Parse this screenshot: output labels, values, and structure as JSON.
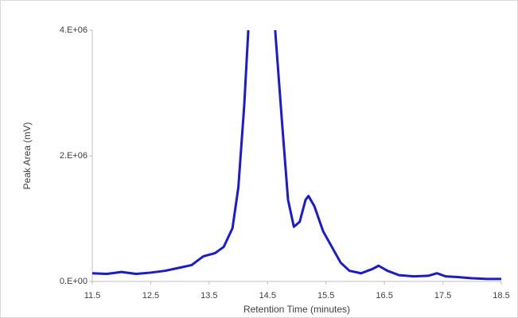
{
  "chart_data": {
    "type": "line",
    "x_label": "Retention Time (minutes)",
    "y_label": "Peak Area (mV)",
    "x": [
      11.5,
      11.75,
      12.0,
      12.25,
      12.5,
      12.75,
      13.0,
      13.2,
      13.4,
      13.6,
      13.75,
      13.9,
      14.0,
      14.1,
      14.17,
      14.4,
      14.63,
      14.75,
      14.85,
      14.95,
      15.05,
      15.15,
      15.2,
      15.3,
      15.45,
      15.6,
      15.75,
      15.9,
      16.1,
      16.3,
      16.4,
      16.55,
      16.75,
      17.0,
      17.25,
      17.4,
      17.55,
      17.75,
      18.0,
      18.25,
      18.5
    ],
    "series": [
      {
        "color": "#1a1ad6",
        "values": [
          130000,
          120000,
          150000,
          120000,
          140000,
          170000,
          220000,
          260000,
          400000,
          450000,
          550000,
          850000,
          1500000,
          2800000,
          4000000,
          null,
          4000000,
          2500000,
          1300000,
          870000,
          950000,
          1300000,
          1360000,
          1200000,
          800000,
          550000,
          300000,
          170000,
          130000,
          200000,
          250000,
          170000,
          100000,
          80000,
          90000,
          130000,
          80000,
          70000,
          50000,
          40000,
          40000
        ]
      }
    ],
    "xlim": [
      11.5,
      18.5
    ],
    "xticks": [
      11.5,
      12.5,
      13.5,
      14.5,
      15.5,
      16.5,
      17.5,
      18.5
    ],
    "ylim": [
      0,
      4000000
    ],
    "yticks": [
      {
        "value": 0,
        "label": "0.E+00"
      },
      {
        "value": 2000000,
        "label": "2.E+06"
      },
      {
        "value": 4000000,
        "label": "4.E+06"
      }
    ],
    "grid": false
  }
}
